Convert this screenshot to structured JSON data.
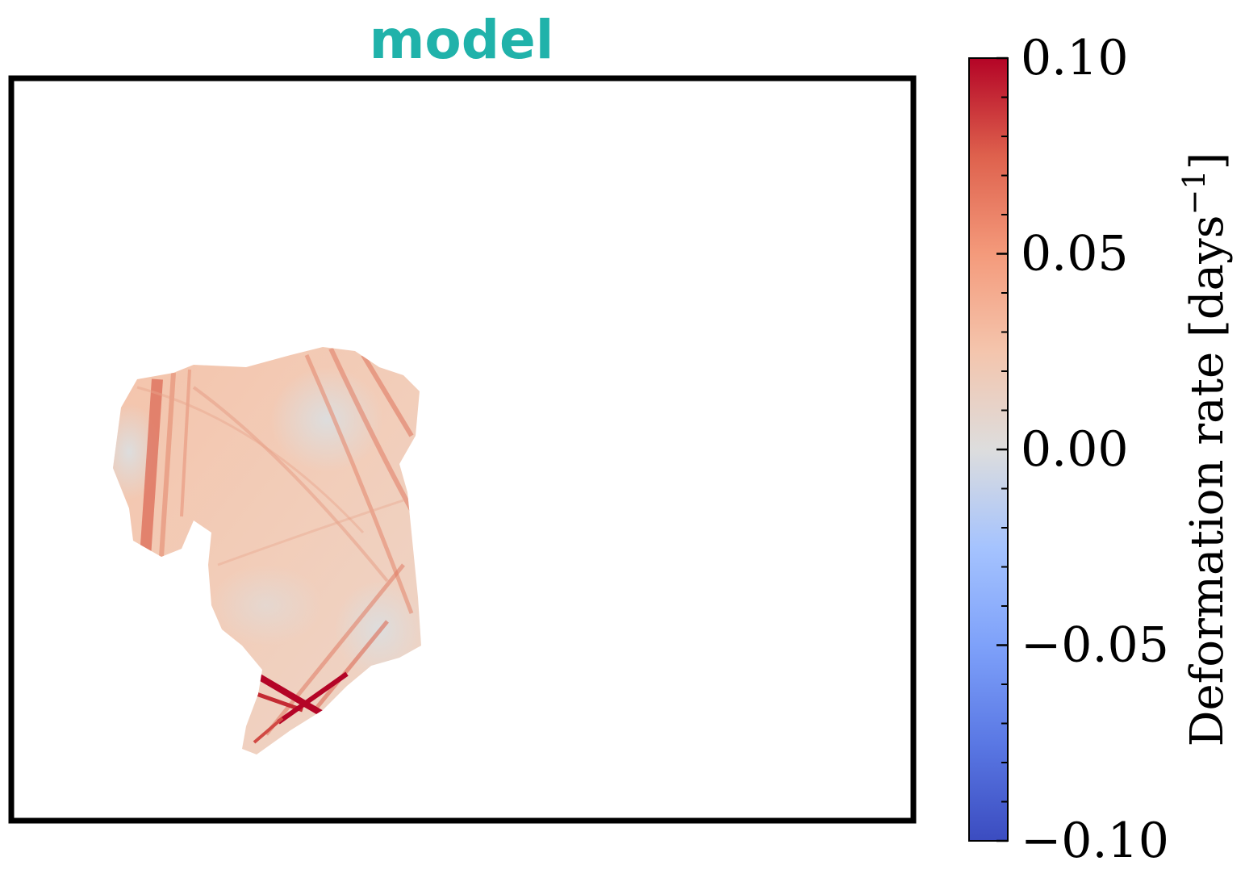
{
  "chart_data": {
    "type": "heatmap",
    "title": "model",
    "title_color": "#20b2aa",
    "colormap": "coolwarm",
    "colorbar": {
      "label": "Deformation rate [days",
      "label_superscript": "−1",
      "label_close": "]",
      "vmin": -0.1,
      "vmax": 0.1,
      "ticks": [
        0.1,
        0.05,
        0.0,
        -0.05,
        -0.1
      ],
      "tick_labels": [
        "0.10",
        "0.05",
        "0.00",
        "−0.05",
        "−0.10"
      ],
      "minor_tick_step": 0.01
    },
    "colors": {
      "low": "#3b4cc0",
      "mid": "#dddddd",
      "high": "#b40426"
    },
    "grid": false,
    "axes_ticks": false
  }
}
